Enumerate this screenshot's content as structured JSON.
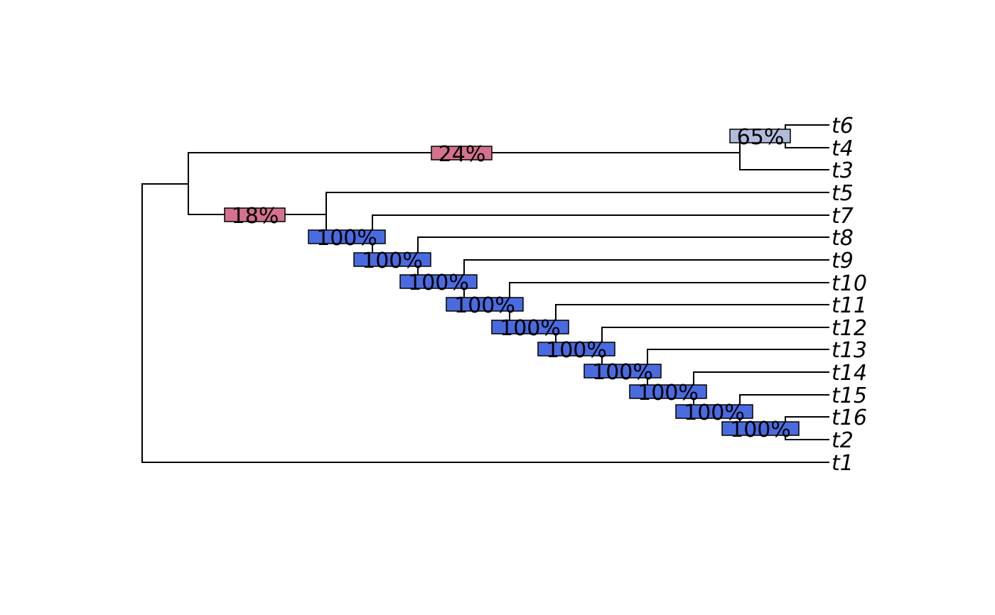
{
  "tree": {
    "tips": [
      "t6",
      "t4",
      "t3",
      "t5",
      "t7",
      "t8",
      "t9",
      "t10",
      "t11",
      "t12",
      "t13",
      "t14",
      "t15",
      "t16",
      "t2",
      "t1"
    ],
    "supports": [
      {
        "label": "65%",
        "value": 65,
        "color": "#b3bbdd"
      },
      {
        "label": "24%",
        "value": 24,
        "color": "#d4728e"
      },
      {
        "label": "18%",
        "value": 18,
        "color": "#d4728e"
      },
      {
        "label": "100%",
        "value": 100,
        "color": "#4a6be0"
      },
      {
        "label": "100%",
        "value": 100,
        "color": "#4a6be0"
      },
      {
        "label": "100%",
        "value": 100,
        "color": "#4a6be0"
      },
      {
        "label": "100%",
        "value": 100,
        "color": "#4a6be0"
      },
      {
        "label": "100%",
        "value": 100,
        "color": "#4a6be0"
      },
      {
        "label": "100%",
        "value": 100,
        "color": "#4a6be0"
      },
      {
        "label": "100%",
        "value": 100,
        "color": "#4a6be0"
      },
      {
        "label": "100%",
        "value": 100,
        "color": "#4a6be0"
      },
      {
        "label": "100%",
        "value": 100,
        "color": "#4a6be0"
      },
      {
        "label": "100%",
        "value": 100,
        "color": "#4a6be0"
      }
    ]
  }
}
